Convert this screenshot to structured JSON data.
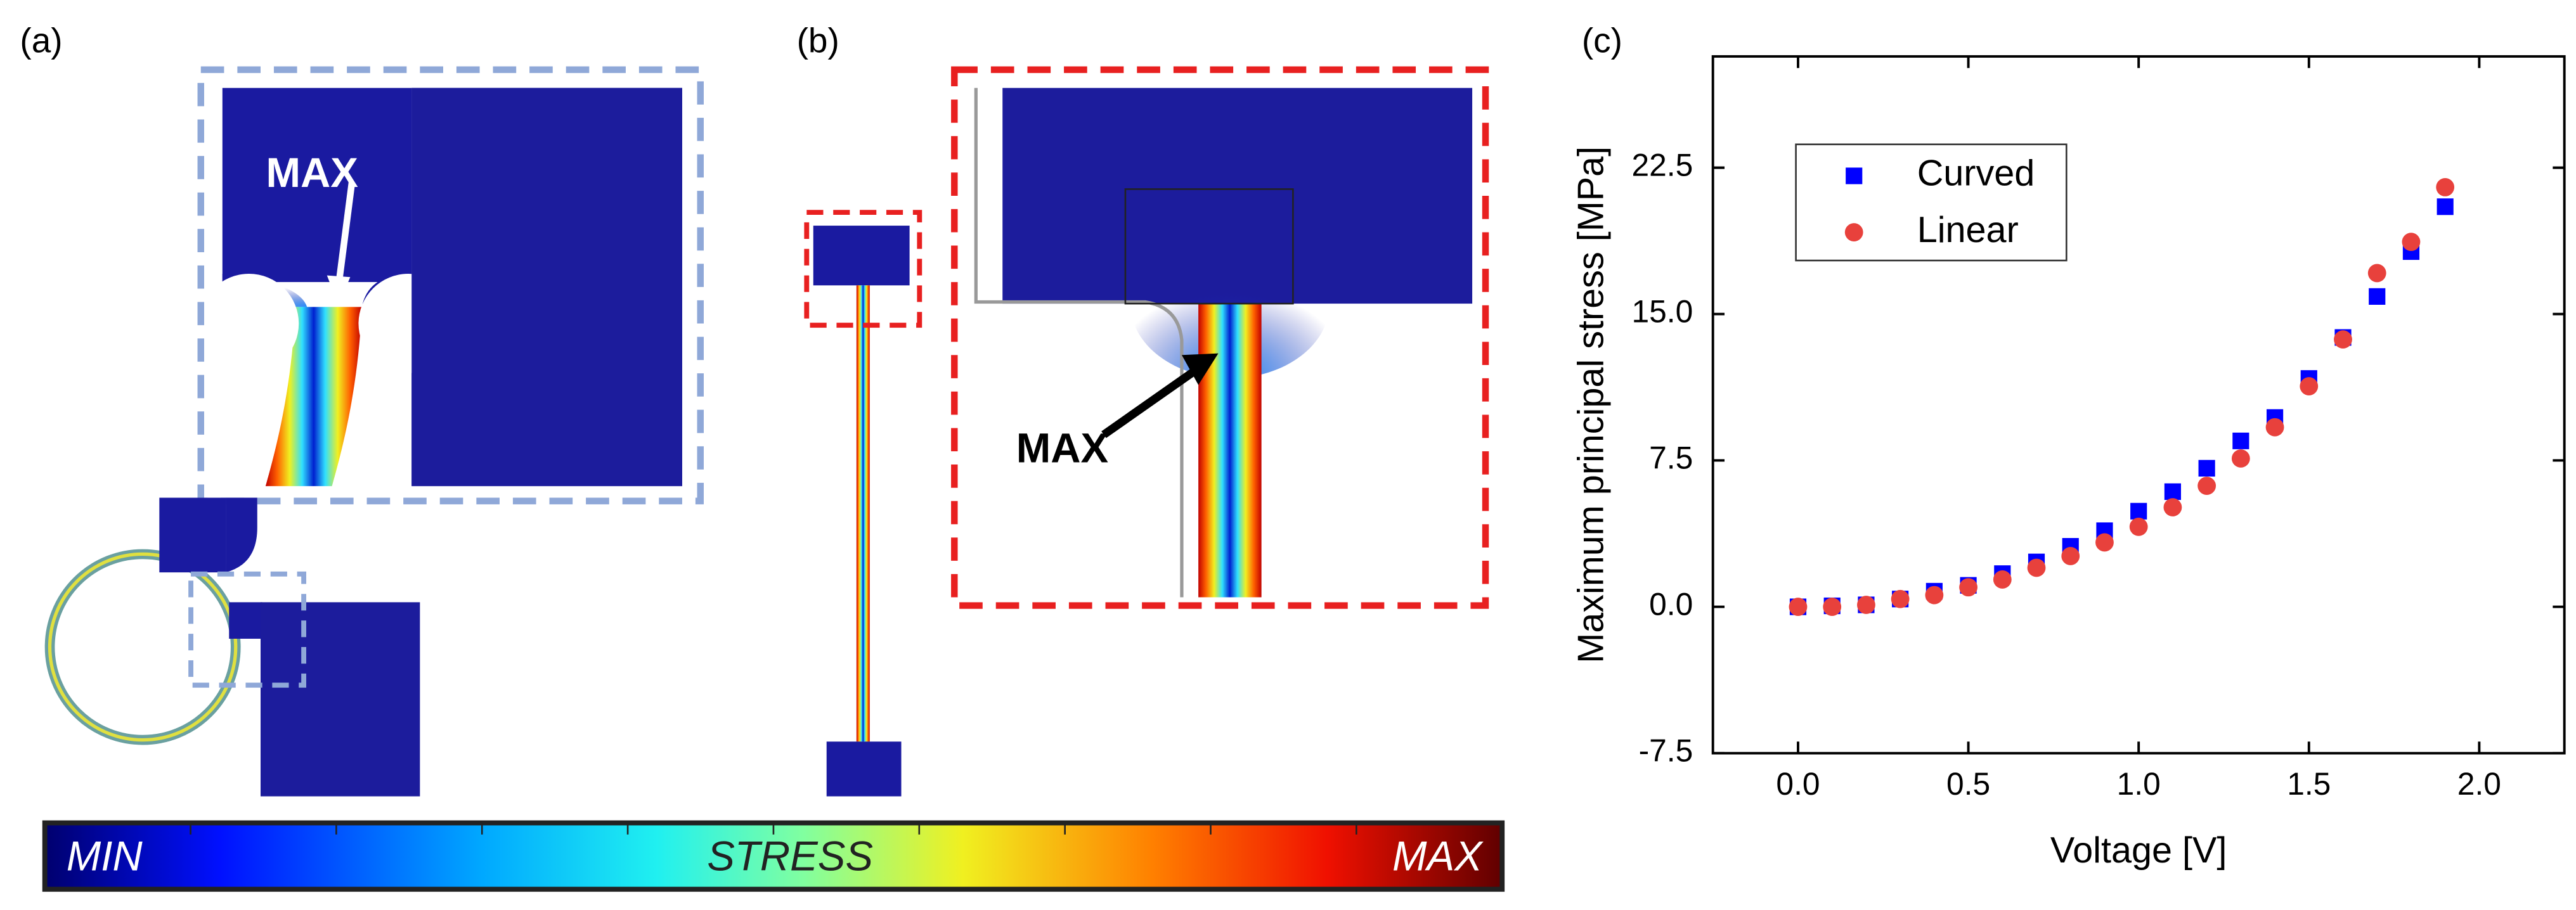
{
  "panels": {
    "a": "(a)",
    "b": "(b)",
    "c": "(c)"
  },
  "annotations": {
    "a_max": "MAX",
    "b_max": "MAX"
  },
  "colorbar": {
    "min": "MIN",
    "label": "STRESS",
    "max": "MAX"
  },
  "chart_data": {
    "type": "scatter",
    "xlabel": "Voltage [V]",
    "ylabel": "Maximum principal stress [MPa]",
    "x": [
      0.0,
      0.1,
      0.2,
      0.3,
      0.4,
      0.5,
      0.6,
      0.7,
      0.8,
      0.9,
      1.0,
      1.1,
      1.2,
      1.3,
      1.4,
      1.5,
      1.6,
      1.7,
      1.8,
      1.9
    ],
    "series": [
      {
        "name": "Curved",
        "color": "#0000ff",
        "marker": "square",
        "values": [
          0.0,
          0.05,
          0.1,
          0.4,
          0.8,
          1.1,
          1.7,
          2.3,
          3.1,
          3.9,
          4.9,
          5.9,
          7.1,
          8.5,
          9.7,
          11.7,
          13.8,
          15.9,
          18.2,
          20.5
        ]
      },
      {
        "name": "Linear",
        "color": "#e8413c",
        "marker": "circle",
        "values": [
          0.0,
          0.0,
          0.1,
          0.4,
          0.6,
          1.0,
          1.4,
          2.0,
          2.6,
          3.3,
          4.1,
          5.1,
          6.2,
          7.6,
          9.2,
          11.3,
          13.7,
          17.1,
          18.7,
          21.5
        ]
      }
    ],
    "xlim": [
      -0.25,
      2.25
    ],
    "ylim": [
      -7.5,
      28.2
    ],
    "xticks": [
      {
        "value": 0,
        "label": "0.0"
      },
      0.5,
      {
        "value": 1,
        "label": "1.0"
      },
      1.5,
      {
        "value": 2,
        "label": "2.0"
      }
    ],
    "yticks": [
      -7.5,
      {
        "value": 0,
        "label": "0.0"
      },
      7.5,
      {
        "value": 15,
        "label": "15.0"
      },
      22.5
    ],
    "legend": "upper left"
  }
}
